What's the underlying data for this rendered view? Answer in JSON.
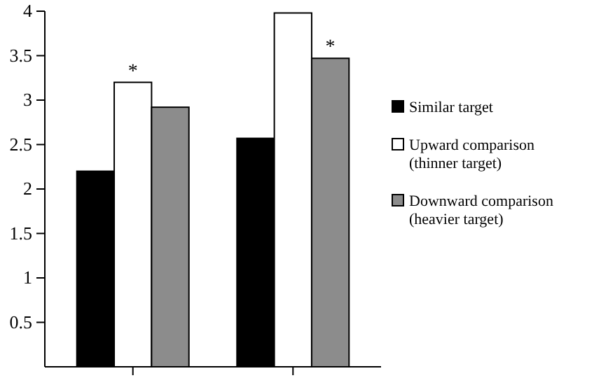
{
  "chart_data": {
    "type": "bar",
    "categories": [
      null,
      null
    ],
    "series": [
      {
        "name": "Similar target",
        "color": "#000000",
        "values": [
          2.2,
          2.57
        ]
      },
      {
        "name": "Upward comparison (thinner target)",
        "color": "#ffffff",
        "values": [
          3.2,
          3.98
        ],
        "value_labels": [
          "*",
          null
        ]
      },
      {
        "name": "Downward comparison (heavier target)",
        "color": "#8c8c8c",
        "values": [
          2.92,
          3.47
        ],
        "value_labels": [
          null,
          "*"
        ]
      }
    ],
    "ylim": [
      0,
      4
    ],
    "yticks": [
      0.5,
      1,
      1.5,
      2,
      2.5,
      3,
      3.5,
      4
    ],
    "legend": "right",
    "grid": false
  }
}
